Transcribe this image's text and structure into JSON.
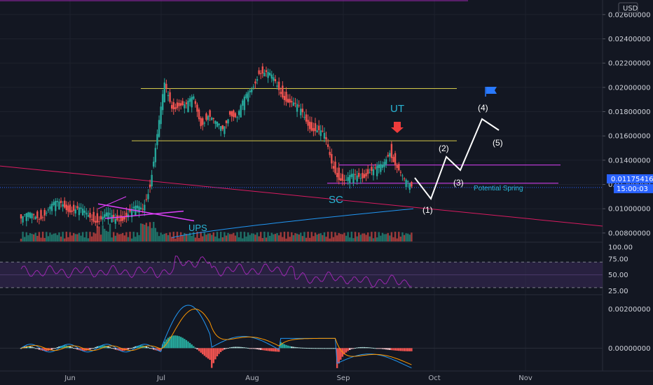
{
  "currency": "USD",
  "current_price": "0.01175416",
  "countdown": "15:00:03",
  "colors": {
    "bg": "#131722",
    "grid": "#1e222d",
    "up": "#26a69a",
    "down": "#ef5350",
    "yellow_line": "#d4c94a",
    "magenta": "#e040fb",
    "pink_trend": "#d81b60",
    "ma_line": "#2196f3",
    "rsi_line": "#9c27b0",
    "rsi_band": "#3a2a5a",
    "macd_line": "#2196f3",
    "signal_line": "#ff9800",
    "annotation_teal": "#29b6d6",
    "price_marker": "#2962ff"
  },
  "annotations": {
    "ut": "UT",
    "sc": "SC",
    "ups": "UPS",
    "potential_spring": "Potential Spring",
    "wave_1": "(1)",
    "wave_2": "(2)",
    "wave_3": "(3)",
    "wave_4": "(4)",
    "wave_5": "(5)"
  },
  "chart_data": [
    {
      "type": "candlestick",
      "name": "price",
      "x_months": [
        "Jun",
        "Jul",
        "Aug",
        "Sep",
        "Oct",
        "Nov"
      ],
      "y_ticks": [
        "0.02600000",
        "0.02400000",
        "0.02200000",
        "0.02000000",
        "0.01800000",
        "0.01600000",
        "0.01400000",
        "0.01200000",
        "0.01000000",
        "0.00800000"
      ],
      "ylim": [
        0.0073,
        0.0272
      ],
      "levels": {
        "upper_range": 0.0199,
        "mid_range": 0.0156,
        "ut_box_top": 0.0136,
        "ut_box_bottom": 0.0121
      },
      "close_series": [
        0.0092,
        0.0094,
        0.0096,
        0.0099,
        0.0102,
        0.0105,
        0.0101,
        0.0098,
        0.0095,
        0.0094,
        0.0092,
        0.0093,
        0.0091,
        0.0094,
        0.0096,
        0.0098,
        0.01,
        0.0122,
        0.016,
        0.02,
        0.0185,
        0.0188,
        0.0183,
        0.019,
        0.0172,
        0.0178,
        0.0168,
        0.0165,
        0.0182,
        0.0175,
        0.0188,
        0.02,
        0.0215,
        0.021,
        0.0205,
        0.0198,
        0.019,
        0.0183,
        0.0178,
        0.017,
        0.0165,
        0.0158,
        0.0138,
        0.0128,
        0.0122,
        0.0125,
        0.0128,
        0.0132,
        0.013,
        0.0134,
        0.015,
        0.0135,
        0.012,
        0.0118
      ]
    },
    {
      "type": "line",
      "name": "RSI",
      "y_ticks": [
        "100.00",
        "75.00",
        "50.00",
        "25.00"
      ],
      "ylim": [
        20,
        100
      ],
      "band": [
        30,
        70
      ]
    },
    {
      "type": "line",
      "name": "MACD",
      "y_ticks": [
        "0.00200000",
        "0.00000000"
      ],
      "ylim": [
        -0.0011,
        0.0027
      ]
    }
  ]
}
